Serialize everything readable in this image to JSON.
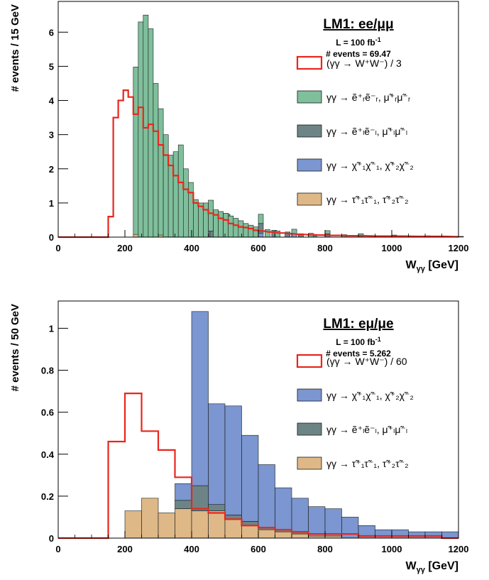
{
  "chart_data": [
    {
      "type": "bar",
      "title": "LM1: ee/μμ",
      "luminosity": "L = 100 fb",
      "luminosity_sup": "-1",
      "events": "# events = 69.47",
      "xlabel": "W",
      "xlabel_sub": "γγ",
      "xlabel_unit": "[GeV]",
      "ylabel": "# events / 15 GeV",
      "xlim": [
        0,
        1200
      ],
      "ylim": [
        0,
        6.9
      ],
      "xticks": [
        0,
        200,
        400,
        600,
        800,
        1000,
        1200
      ],
      "yticks": [
        0,
        1,
        2,
        3,
        4,
        5,
        6
      ],
      "bin_width": 15,
      "legend_position": "top-right",
      "stacked": [
        {
          "name": "γγ → τ̃⁺₁τ̃⁻₁, τ̃⁺₂τ̃⁻₂",
          "color": "#deb887",
          "x": [
            225,
            300,
            400,
            500
          ],
          "values": [
            0.08,
            0.06,
            0.04,
            0.02
          ]
        },
        {
          "name": "γγ → χ̃⁺₁χ̃⁻₁, χ̃⁺₂χ̃⁻₂",
          "color": "#7b96d0",
          "x": [
            380,
            400,
            450,
            500,
            600,
            700,
            800,
            900,
            1000,
            1100,
            1200
          ],
          "values": [
            0.15,
            0.2,
            0.18,
            0.15,
            0.12,
            0.09,
            0.07,
            0.05,
            0.03,
            0.02,
            0.01
          ]
        },
        {
          "name": "γγ → ẽ⁺ₗẽ⁻ₗ, μ̃⁺ₗμ̃⁻ₗ",
          "color": "#6d8486",
          "x": [
            380,
            395,
            410,
            425,
            440,
            455,
            470,
            485,
            500,
            530,
            560,
            600,
            640,
            680,
            720,
            760,
            800
          ],
          "values": [
            0.95,
            0.92,
            0.85,
            0.8,
            0.72,
            0.66,
            0.6,
            0.55,
            0.5,
            0.42,
            0.35,
            0.28,
            0.2,
            0.15,
            0.1,
            0.06,
            0.03
          ]
        },
        {
          "name": "γγ → ẽ⁺ᵣẽ⁻ᵣ, μ̃⁺ᵣμ̃⁻ᵣ",
          "color": "#7fbf9c",
          "x": [
            225,
            240,
            255,
            270,
            285,
            300,
            315,
            330,
            345,
            360,
            375,
            390,
            405,
            420,
            435,
            450,
            465,
            480,
            495,
            510,
            525,
            540,
            555,
            570,
            585,
            600,
            620,
            650,
            700,
            750,
            800,
            850,
            900,
            1000,
            1100,
            1200
          ],
          "values": [
            4.9,
            6.3,
            6.5,
            6.1,
            4.5,
            3.7,
            3.0,
            2.4,
            2.5,
            2.7,
            2.0,
            1.6,
            1.1,
            1.0,
            1.0,
            0.9,
            0.8,
            0.75,
            0.7,
            0.62,
            0.55,
            0.48,
            0.4,
            0.35,
            0.3,
            0.27,
            0.22,
            0.18,
            0.14,
            0.11,
            0.09,
            0.07,
            0.05,
            0.03,
            0.02,
            0.01
          ]
        }
      ],
      "overlay": {
        "name": "(γγ → W⁺W⁻) / 3",
        "color": "#e8261c",
        "x": [
          150,
          165,
          180,
          195,
          210,
          225,
          240,
          255,
          270,
          285,
          300,
          315,
          330,
          345,
          360,
          375,
          390,
          405,
          420,
          435,
          450,
          465,
          480,
          495,
          510,
          525,
          540,
          555,
          570,
          585,
          600,
          630,
          660,
          690,
          720,
          750,
          780,
          810,
          840,
          870,
          900,
          960,
          1020,
          1080,
          1140,
          1200
        ],
        "values": [
          0.6,
          3.5,
          4.0,
          4.3,
          4.1,
          3.6,
          3.8,
          3.2,
          3.3,
          3.1,
          2.7,
          2.4,
          2.1,
          1.8,
          1.6,
          1.4,
          1.3,
          1.0,
          0.9,
          0.8,
          0.7,
          0.65,
          0.55,
          0.5,
          0.4,
          0.35,
          0.3,
          0.28,
          0.25,
          0.2,
          0.18,
          0.15,
          0.12,
          0.1,
          0.08,
          0.07,
          0.06,
          0.05,
          0.05,
          0.04,
          0.04,
          0.03,
          0.03,
          0.02,
          0.02,
          0.01
        ]
      }
    },
    {
      "type": "bar",
      "title": "LM1: eμ/μe",
      "luminosity": "L = 100 fb",
      "luminosity_sup": "-1",
      "events": "# events = 5.262",
      "xlabel": "W",
      "xlabel_sub": "γγ",
      "xlabel_unit": "[GeV]",
      "ylabel": "# events / 50 GeV",
      "xlim": [
        0,
        1200
      ],
      "ylim": [
        0,
        1.13
      ],
      "xticks": [
        0,
        200,
        400,
        600,
        800,
        1000,
        1200
      ],
      "yticks": [
        0,
        0.2,
        0.4,
        0.6,
        0.8,
        1
      ],
      "ytick_labels": [
        "0",
        "0.2",
        "0.4",
        "0.6",
        "0.8",
        "1"
      ],
      "bin_width": 50,
      "legend_position": "top-right",
      "stacked": [
        {
          "name": "γγ → τ̃⁺₁τ̃⁻₁, τ̃⁺₂τ̃⁻₂",
          "color": "#deb887",
          "x": [
            200,
            250,
            300,
            350,
            400,
            450,
            500,
            550,
            600,
            650,
            700,
            750,
            800
          ],
          "values": [
            0.13,
            0.19,
            0.12,
            0.14,
            0.13,
            0.13,
            0.09,
            0.06,
            0.04,
            0.03,
            0.02,
            0.01,
            0.01
          ]
        },
        {
          "name": "γγ → ẽ⁺ₗẽ⁻ₗ, μ̃⁺ₗμ̃⁻ₗ",
          "color": "#6d8486",
          "x": [
            350,
            400,
            450,
            500,
            550,
            600,
            650,
            700,
            750,
            800
          ],
          "values": [
            0.04,
            0.12,
            0.03,
            0.02,
            0.02,
            0.01,
            0.01,
            0.01,
            0.0,
            0.0
          ]
        },
        {
          "name": "γγ → χ̃⁺₁χ̃⁻₁, χ̃⁺₂χ̃⁻₂",
          "color": "#7b96d0",
          "x": [
            350,
            400,
            450,
            500,
            550,
            600,
            650,
            700,
            750,
            800,
            850,
            900,
            950,
            1000,
            1050,
            1100,
            1150
          ],
          "values": [
            0.08,
            0.83,
            0.48,
            0.52,
            0.41,
            0.3,
            0.2,
            0.16,
            0.14,
            0.13,
            0.1,
            0.06,
            0.04,
            0.04,
            0.03,
            0.03,
            0.03
          ]
        }
      ],
      "overlay": {
        "name": "(γγ → W⁺W⁻) / 60",
        "color": "#e8261c",
        "x": [
          150,
          200,
          250,
          300,
          350,
          400,
          450,
          500,
          550,
          600,
          650,
          700,
          750,
          800,
          850,
          900,
          950,
          1000,
          1050,
          1100,
          1150
        ],
        "values": [
          0.46,
          0.69,
          0.51,
          0.42,
          0.29,
          0.14,
          0.12,
          0.09,
          0.06,
          0.05,
          0.04,
          0.03,
          0.02,
          0.02,
          0.02,
          0.01,
          0.01,
          0.01,
          0.01,
          0.01,
          0.0
        ]
      }
    }
  ]
}
